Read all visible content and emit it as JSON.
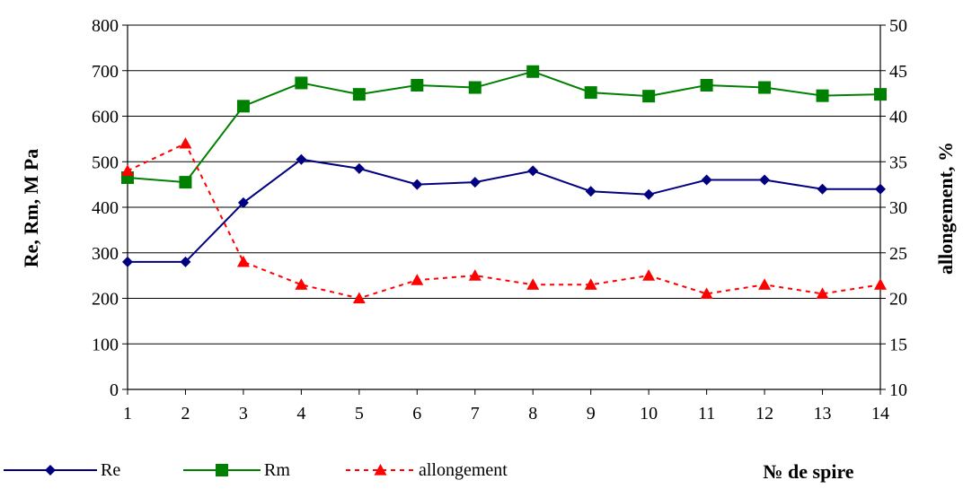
{
  "chart_data": {
    "type": "line",
    "x": [
      1,
      2,
      3,
      4,
      5,
      6,
      7,
      8,
      9,
      10,
      11,
      12,
      13,
      14
    ],
    "xlabel": "№ de spire",
    "y_left": {
      "label": "Re, Rm,  M Pa",
      "ylim": [
        0,
        800
      ],
      "ticks": [
        0,
        100,
        200,
        300,
        400,
        500,
        600,
        700,
        800
      ]
    },
    "y_right": {
      "label": "allongement, %",
      "ylim": [
        10,
        50
      ],
      "ticks": [
        10,
        15,
        20,
        25,
        30,
        35,
        40,
        45,
        50
      ]
    },
    "series": [
      {
        "name": "Re",
        "axis": "left",
        "color": "#000080",
        "marker": "diamond",
        "line": "solid",
        "values": [
          280,
          280,
          410,
          505,
          485,
          450,
          455,
          480,
          435,
          428,
          460,
          460,
          440,
          440
        ]
      },
      {
        "name": "Rm",
        "axis": "left",
        "color": "#008000",
        "marker": "square",
        "line": "solid",
        "values": [
          465,
          455,
          622,
          673,
          648,
          668,
          663,
          698,
          652,
          644,
          668,
          663,
          645,
          648
        ]
      },
      {
        "name": "allongement",
        "axis": "right",
        "color": "#ff0000",
        "marker": "triangle",
        "line": "dashed",
        "values": [
          34,
          37,
          24,
          21.5,
          20,
          22,
          22.5,
          21.5,
          21.5,
          22.5,
          20.5,
          21.5,
          20.5,
          21.5
        ]
      }
    ],
    "grid": "horizontal",
    "legend_position": "bottom"
  }
}
